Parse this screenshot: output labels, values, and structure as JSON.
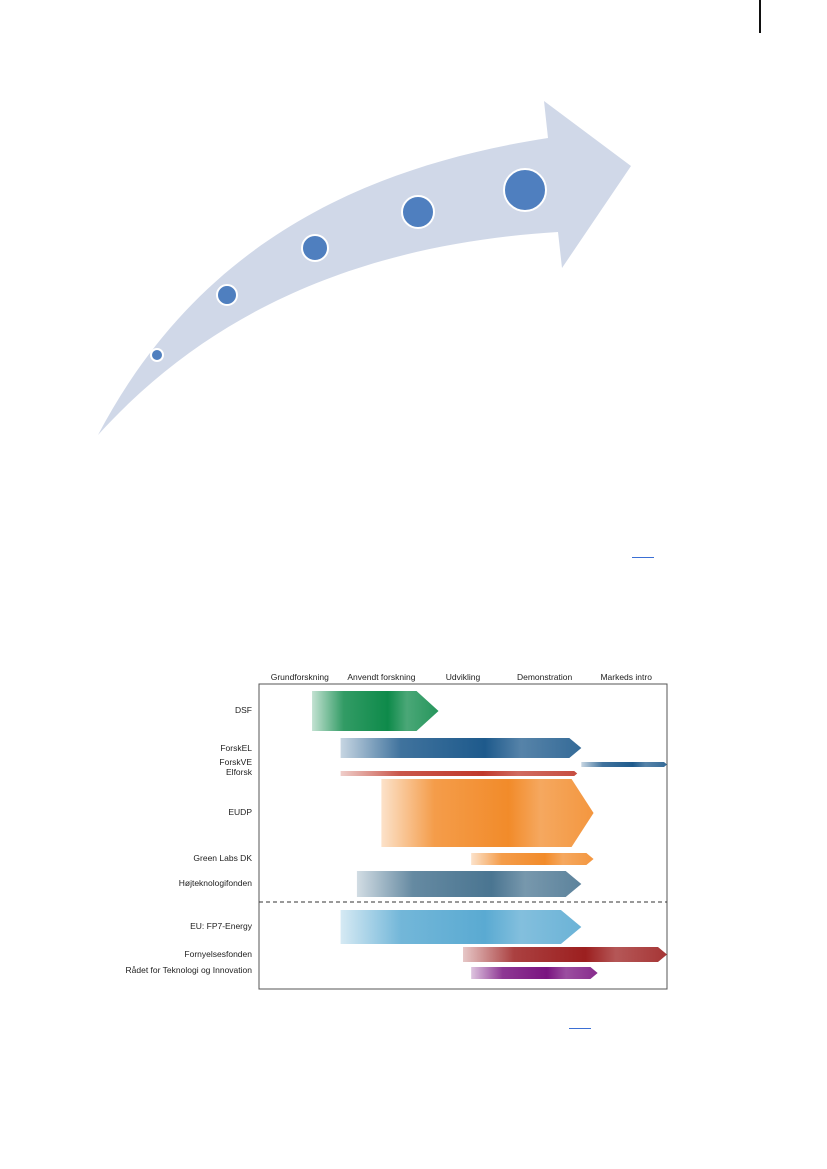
{
  "diagram": {
    "stage_headers": [
      "Grundforskning",
      "Anvendt forskning",
      "Udvikling",
      "Demonstration",
      "Markeds intro"
    ],
    "programs": [
      {
        "label": "DSF",
        "color": "#0e8a4a",
        "start_stage": 0.65,
        "end_stage": 2.2
      },
      {
        "label": "ForskEL",
        "color": "#1e5a8c",
        "start_stage": 1.0,
        "end_stage": 3.95
      },
      {
        "label": "ForskVE",
        "color": "#1e5a8c",
        "start_stage": 3.95,
        "end_stage": 5.0
      },
      {
        "label": "Elforsk",
        "color": "#c0392b",
        "start_stage": 1.0,
        "end_stage": 3.9
      },
      {
        "label": "EUDP",
        "color": "#f28b2a",
        "start_stage": 1.5,
        "end_stage": 4.1
      },
      {
        "label": "Green Labs DK",
        "color": "#f28b2a",
        "start_stage": 2.6,
        "end_stage": 4.1
      },
      {
        "label": "Højteknologifonden",
        "color": "#4a7591",
        "start_stage": 1.2,
        "end_stage": 3.95
      },
      {
        "label": "EU: FP7-Energy",
        "color": "#5aaad2",
        "start_stage": 1.0,
        "end_stage": 3.95
      },
      {
        "label": "Fornyelsesfonden",
        "color": "#9c1f1f",
        "start_stage": 2.5,
        "end_stage": 5.0
      },
      {
        "label": "Rådet for Teknologi og Innovation",
        "color": "#7a1480",
        "start_stage": 2.6,
        "end_stage": 4.15
      }
    ],
    "divider_style": "dashed"
  },
  "growth_arrow": {
    "fill": "#d0d8e8",
    "dot_color": "#4f7fbf",
    "dot_count": 5
  }
}
